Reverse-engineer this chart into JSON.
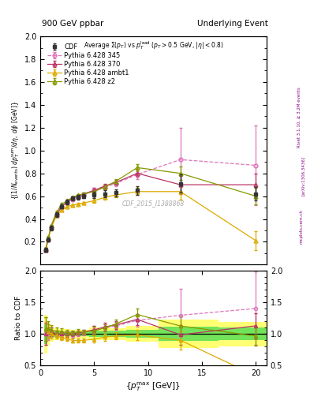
{
  "title_left": "900 GeV ppbar",
  "title_right": "Underlying Event",
  "watermark": "CDF_2015_I1388868",
  "right_label1": "Rivet 3.1.10, ≥ 3.2M events",
  "right_label2": "[arXiv:1306.3436]",
  "right_label3": "mcplots.cern.ch",
  "cdf_x": [
    0.5,
    0.75,
    1.0,
    1.5,
    2.0,
    2.5,
    3.0,
    3.5,
    4.0,
    5.0,
    6.0,
    7.0,
    9.0,
    13.0,
    20.0
  ],
  "cdf_y": [
    0.13,
    0.22,
    0.32,
    0.44,
    0.51,
    0.55,
    0.58,
    0.59,
    0.6,
    0.61,
    0.62,
    0.63,
    0.65,
    0.71,
    0.62
  ],
  "cdf_yerr": [
    0.02,
    0.02,
    0.02,
    0.02,
    0.02,
    0.02,
    0.02,
    0.02,
    0.02,
    0.03,
    0.03,
    0.03,
    0.04,
    0.08,
    0.06
  ],
  "p345_x": [
    0.5,
    0.75,
    1.0,
    1.5,
    2.0,
    2.5,
    3.0,
    3.5,
    4.0,
    5.0,
    6.0,
    7.0,
    9.0,
    13.0,
    20.0
  ],
  "p345_y": [
    0.13,
    0.22,
    0.33,
    0.44,
    0.51,
    0.55,
    0.57,
    0.59,
    0.61,
    0.65,
    0.68,
    0.71,
    0.79,
    0.92,
    0.87
  ],
  "p345_yerr": [
    0.01,
    0.01,
    0.01,
    0.01,
    0.01,
    0.01,
    0.01,
    0.01,
    0.01,
    0.02,
    0.02,
    0.02,
    0.04,
    0.28,
    0.35
  ],
  "p370_x": [
    0.5,
    0.75,
    1.0,
    1.5,
    2.0,
    2.5,
    3.0,
    3.5,
    4.0,
    5.0,
    6.0,
    7.0,
    9.0,
    13.0,
    20.0
  ],
  "p370_y": [
    0.13,
    0.23,
    0.33,
    0.44,
    0.51,
    0.55,
    0.58,
    0.6,
    0.62,
    0.65,
    0.69,
    0.72,
    0.8,
    0.7,
    0.7
  ],
  "p370_yerr": [
    0.01,
    0.01,
    0.01,
    0.01,
    0.01,
    0.01,
    0.01,
    0.01,
    0.01,
    0.02,
    0.02,
    0.02,
    0.03,
    0.08,
    0.1
  ],
  "ambt1_x": [
    0.5,
    0.75,
    1.0,
    1.5,
    2.0,
    2.5,
    3.0,
    3.5,
    4.0,
    5.0,
    6.0,
    7.0,
    9.0,
    13.0,
    20.0
  ],
  "ambt1_y": [
    0.14,
    0.23,
    0.32,
    0.43,
    0.48,
    0.51,
    0.52,
    0.53,
    0.54,
    0.56,
    0.59,
    0.61,
    0.64,
    0.64,
    0.21
  ],
  "ambt1_yerr": [
    0.01,
    0.01,
    0.01,
    0.01,
    0.01,
    0.01,
    0.01,
    0.01,
    0.01,
    0.02,
    0.02,
    0.02,
    0.03,
    0.07,
    0.08
  ],
  "z2_x": [
    0.5,
    0.75,
    1.0,
    1.5,
    2.0,
    2.5,
    3.0,
    3.5,
    4.0,
    5.0,
    6.0,
    7.0,
    9.0,
    13.0,
    20.0
  ],
  "z2_y": [
    0.14,
    0.24,
    0.34,
    0.46,
    0.53,
    0.56,
    0.59,
    0.61,
    0.62,
    0.64,
    0.68,
    0.73,
    0.85,
    0.8,
    0.6
  ],
  "z2_yerr": [
    0.01,
    0.01,
    0.01,
    0.01,
    0.01,
    0.01,
    0.01,
    0.01,
    0.01,
    0.02,
    0.02,
    0.02,
    0.03,
    0.06,
    0.07
  ],
  "color_cdf": "#333333",
  "color_p345": "#dd77bb",
  "color_p370": "#bb3366",
  "color_ambt1": "#ddaa00",
  "color_z2": "#889900",
  "ylim_main": [
    0.0,
    2.0
  ],
  "ylim_ratio": [
    0.5,
    2.0
  ],
  "xlim": [
    0.0,
    21.0
  ],
  "main_yticks": [
    0.2,
    0.4,
    0.6,
    0.8,
    1.0,
    1.2,
    1.4,
    1.6,
    1.8,
    2.0
  ],
  "ratio_yticks": [
    0.5,
    1.0,
    1.5,
    2.0
  ],
  "xticks": [
    0,
    5,
    10,
    15,
    20
  ]
}
